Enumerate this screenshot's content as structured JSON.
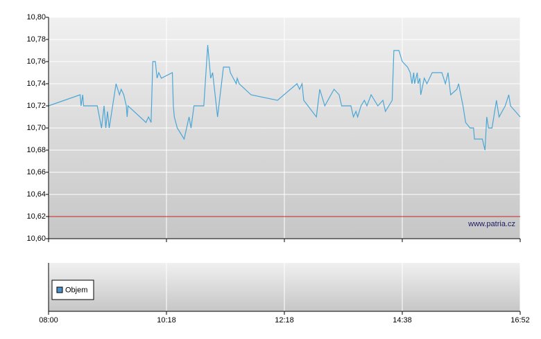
{
  "chart_data": {
    "type": "line",
    "x": [
      "08:00",
      "08:37",
      "08:38",
      "08:40",
      "08:41",
      "08:57",
      "09:02",
      "09:05",
      "09:07",
      "09:09",
      "09:11",
      "09:12",
      "09:19",
      "09:23",
      "09:25",
      "09:28",
      "09:31",
      "09:32",
      "09:33",
      "09:54",
      "09:57",
      "10:00",
      "10:02",
      "10:05",
      "10:07",
      "10:09",
      "10:12",
      "10:24",
      "10:25",
      "10:26",
      "10:29",
      "10:36",
      "10:41",
      "10:43",
      "10:46",
      "10:56",
      "11:00",
      "11:03",
      "11:05",
      "11:10",
      "11:16",
      "11:22",
      "11:23",
      "11:26",
      "11:29",
      "11:30",
      "11:32",
      "11:44",
      "12:11",
      "12:33",
      "12:36",
      "12:39",
      "12:41",
      "12:56",
      "13:00",
      "13:06",
      "13:17",
      "13:23",
      "13:26",
      "13:37",
      "13:40",
      "13:43",
      "13:45",
      "13:49",
      "13:53",
      "13:56",
      "14:01",
      "14:05",
      "14:09",
      "14:15",
      "14:18",
      "14:26",
      "14:28",
      "14:34",
      "14:38",
      "14:44",
      "14:47",
      "14:49",
      "14:51",
      "14:52",
      "14:55",
      "14:56",
      "14:58",
      "14:59",
      "15:03",
      "15:06",
      "15:12",
      "15:23",
      "15:27",
      "15:30",
      "15:33",
      "15:40",
      "15:42",
      "15:47",
      "15:50",
      "15:55",
      "15:59",
      "16:00",
      "16:09",
      "16:12",
      "16:14",
      "16:16",
      "16:20",
      "16:25",
      "16:28",
      "16:35",
      "16:37",
      "16:39",
      "16:41",
      "16:52"
    ],
    "series": [
      {
        "color": "#4aa6d6",
        "values": [
          10.72,
          10.73,
          10.72,
          10.73,
          10.72,
          10.72,
          10.7,
          10.72,
          10.7,
          10.715,
          10.7,
          10.705,
          10.74,
          10.73,
          10.735,
          10.73,
          10.72,
          10.71,
          10.72,
          10.705,
          10.71,
          10.705,
          10.76,
          10.76,
          10.745,
          10.75,
          10.745,
          10.75,
          10.72,
          10.71,
          10.7,
          10.69,
          10.71,
          10.7,
          10.72,
          10.72,
          10.775,
          10.745,
          10.75,
          10.71,
          10.755,
          10.755,
          10.75,
          10.745,
          10.74,
          10.745,
          10.74,
          10.73,
          10.725,
          10.74,
          10.735,
          10.74,
          10.725,
          10.71,
          10.735,
          10.72,
          10.735,
          10.73,
          10.72,
          10.72,
          10.71,
          10.715,
          10.71,
          10.72,
          10.725,
          10.72,
          10.73,
          10.725,
          10.72,
          10.725,
          10.715,
          10.725,
          10.77,
          10.77,
          10.76,
          10.755,
          10.75,
          10.74,
          10.75,
          10.74,
          10.75,
          10.74,
          10.745,
          10.73,
          10.745,
          10.74,
          10.75,
          10.75,
          10.74,
          10.75,
          10.73,
          10.735,
          10.74,
          10.72,
          10.705,
          10.7,
          10.7,
          10.69,
          10.69,
          10.68,
          10.71,
          10.7,
          10.7,
          10.725,
          10.71,
          10.72,
          10.725,
          10.73,
          10.72,
          10.71
        ]
      }
    ],
    "xlim": [
      "08:00",
      "16:52"
    ],
    "xticks": [
      "08:00",
      "10:18",
      "12:18",
      "14:38",
      "16:52"
    ],
    "ylim": [
      10.6,
      10.8
    ],
    "yticks": [
      {
        "value": 10.6,
        "label": "10,60"
      },
      {
        "value": 10.62,
        "label": "10,62"
      },
      {
        "value": 10.64,
        "label": "10,64"
      },
      {
        "value": 10.66,
        "label": "10,66"
      },
      {
        "value": 10.68,
        "label": "10,68"
      },
      {
        "value": 10.7,
        "label": "10,70"
      },
      {
        "value": 10.72,
        "label": "10,72"
      },
      {
        "value": 10.74,
        "label": "10,74"
      },
      {
        "value": 10.76,
        "label": "10,76"
      },
      {
        "value": 10.78,
        "label": "10,78"
      },
      {
        "value": 10.8,
        "label": "10,80"
      }
    ],
    "grid": true,
    "reference_line": {
      "value": 10.62,
      "color": "#cc2222"
    },
    "watermark": "www.patria.cz",
    "volume_legend": {
      "name": "Objem",
      "color": "#4a90c8"
    }
  }
}
